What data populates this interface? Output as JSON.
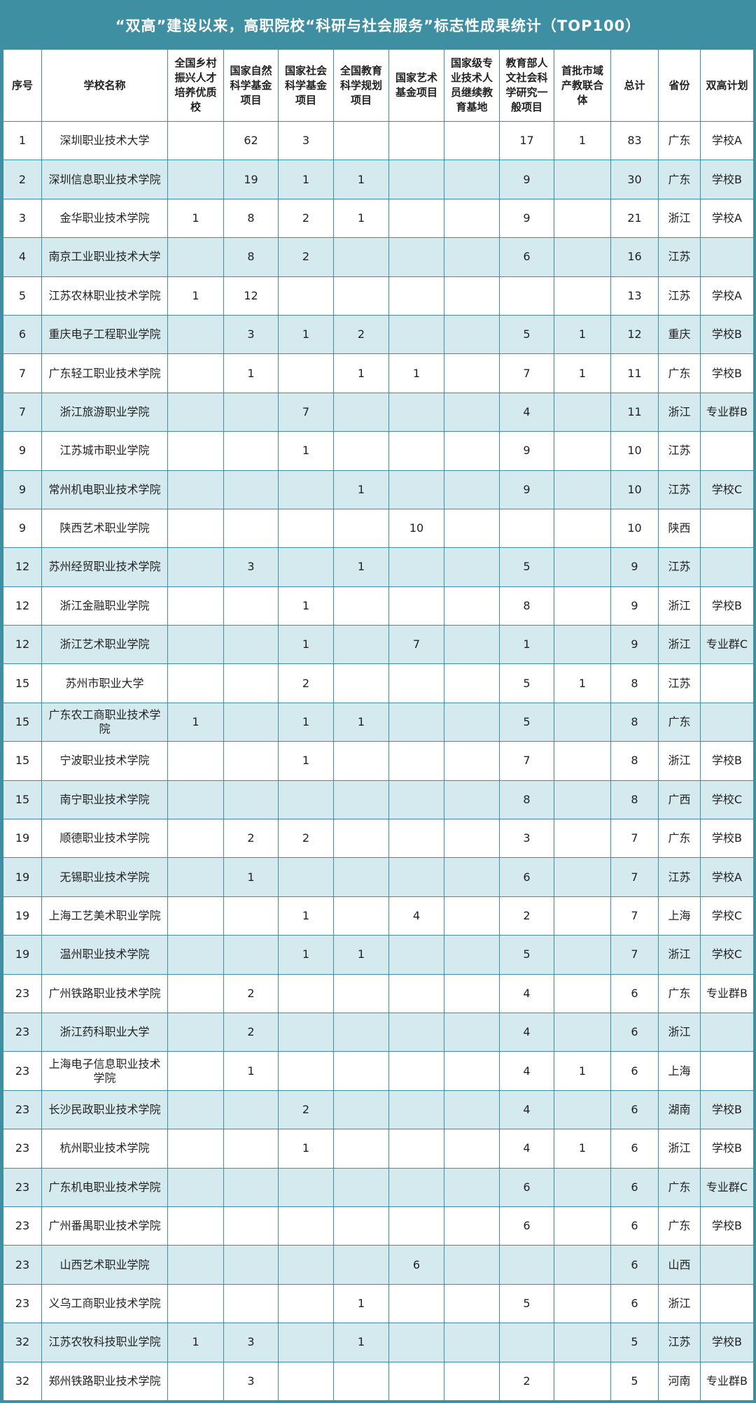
{
  "title": "“双高”建设以来，高职院校“科研与社会服务”标志性成果统计（TOP100）",
  "table": {
    "header": [
      "序号",
      "学校名称",
      "全国乡村振兴人才培养优质校",
      "国家自然科学基金项目",
      "国家社会科学基金项目",
      "全国教育科学规划项目",
      "国家艺术基金项目",
      "国家级专业技术人员继续教育基地",
      "教育部人文社会科学研究一般项目",
      "首批市域产教联合体",
      "总计",
      "省份",
      "双高计划"
    ],
    "rows": [
      [
        1,
        "深圳职业技术大学",
        null,
        62,
        3,
        null,
        null,
        null,
        17,
        1,
        83,
        "广东",
        "学校A"
      ],
      [
        2,
        "深圳信息职业技术学院",
        null,
        19,
        1,
        1,
        null,
        null,
        9,
        null,
        30,
        "广东",
        "学校B"
      ],
      [
        3,
        "金华职业技术学院",
        1,
        8,
        2,
        1,
        null,
        null,
        9,
        null,
        21,
        "浙江",
        "学校A"
      ],
      [
        4,
        "南京工业职业技术大学",
        null,
        8,
        2,
        null,
        null,
        null,
        6,
        null,
        16,
        "江苏",
        null
      ],
      [
        5,
        "江苏农林职业技术学院",
        1,
        12,
        null,
        null,
        null,
        null,
        null,
        null,
        13,
        "江苏",
        "学校A"
      ],
      [
        6,
        "重庆电子工程职业学院",
        null,
        3,
        1,
        2,
        null,
        null,
        5,
        1,
        12,
        "重庆",
        "学校B"
      ],
      [
        7,
        "广东轻工职业技术学院",
        null,
        1,
        null,
        1,
        1,
        null,
        7,
        1,
        11,
        "广东",
        "学校B"
      ],
      [
        7,
        "浙江旅游职业学院",
        null,
        null,
        7,
        null,
        null,
        null,
        4,
        null,
        11,
        "浙江",
        "专业群B"
      ],
      [
        9,
        "江苏城市职业学院",
        null,
        null,
        1,
        null,
        null,
        null,
        9,
        null,
        10,
        "江苏",
        null
      ],
      [
        9,
        "常州机电职业技术学院",
        null,
        null,
        null,
        1,
        null,
        null,
        9,
        null,
        10,
        "江苏",
        "学校C"
      ],
      [
        9,
        "陕西艺术职业学院",
        null,
        null,
        null,
        null,
        10,
        null,
        null,
        null,
        10,
        "陕西",
        null
      ],
      [
        12,
        "苏州经贸职业技术学院",
        null,
        3,
        null,
        1,
        null,
        null,
        5,
        null,
        9,
        "江苏",
        null
      ],
      [
        12,
        "浙江金融职业学院",
        null,
        null,
        1,
        null,
        null,
        null,
        8,
        null,
        9,
        "浙江",
        "学校B"
      ],
      [
        12,
        "浙江艺术职业学院",
        null,
        null,
        1,
        null,
        7,
        null,
        1,
        null,
        9,
        "浙江",
        "专业群C"
      ],
      [
        15,
        "苏州市职业大学",
        null,
        null,
        2,
        null,
        null,
        null,
        5,
        1,
        8,
        "江苏",
        null
      ],
      [
        15,
        "广东农工商职业技术学院",
        1,
        null,
        1,
        1,
        null,
        null,
        5,
        null,
        8,
        "广东",
        null
      ],
      [
        15,
        "宁波职业技术学院",
        null,
        null,
        1,
        null,
        null,
        null,
        7,
        null,
        8,
        "浙江",
        "学校B"
      ],
      [
        15,
        "南宁职业技术学院",
        null,
        null,
        null,
        null,
        null,
        null,
        8,
        null,
        8,
        "广西",
        "学校C"
      ],
      [
        19,
        "顺德职业技术学院",
        null,
        2,
        2,
        null,
        null,
        null,
        3,
        null,
        7,
        "广东",
        "学校B"
      ],
      [
        19,
        "无锡职业技术学院",
        null,
        1,
        null,
        null,
        null,
        null,
        6,
        null,
        7,
        "江苏",
        "学校A"
      ],
      [
        19,
        "上海工艺美术职业学院",
        null,
        null,
        1,
        null,
        4,
        null,
        2,
        null,
        7,
        "上海",
        "学校C"
      ],
      [
        19,
        "温州职业技术学院",
        null,
        null,
        1,
        1,
        null,
        null,
        5,
        null,
        7,
        "浙江",
        "学校C"
      ],
      [
        23,
        "广州铁路职业技术学院",
        null,
        2,
        null,
        null,
        null,
        null,
        4,
        null,
        6,
        "广东",
        "专业群B"
      ],
      [
        23,
        "浙江药科职业大学",
        null,
        2,
        null,
        null,
        null,
        null,
        4,
        null,
        6,
        "浙江",
        null
      ],
      [
        23,
        "上海电子信息职业技术学院",
        null,
        1,
        null,
        null,
        null,
        null,
        4,
        1,
        6,
        "上海",
        null
      ],
      [
        23,
        "长沙民政职业技术学院",
        null,
        null,
        2,
        null,
        null,
        null,
        4,
        null,
        6,
        "湖南",
        "学校B"
      ],
      [
        23,
        "杭州职业技术学院",
        null,
        null,
        1,
        null,
        null,
        null,
        4,
        1,
        6,
        "浙江",
        "学校B"
      ],
      [
        23,
        "广东机电职业技术学院",
        null,
        null,
        null,
        null,
        null,
        null,
        6,
        null,
        6,
        "广东",
        "专业群C"
      ],
      [
        23,
        "广州番禺职业技术学院",
        null,
        null,
        null,
        null,
        null,
        null,
        6,
        null,
        6,
        "广东",
        "学校B"
      ],
      [
        23,
        "山西艺术职业学院",
        null,
        null,
        null,
        null,
        6,
        null,
        null,
        null,
        6,
        "山西",
        null
      ],
      [
        23,
        "义乌工商职业技术学院",
        null,
        null,
        null,
        1,
        null,
        null,
        5,
        null,
        6,
        "浙江",
        null
      ],
      [
        32,
        "江苏农牧科技职业学院",
        1,
        3,
        null,
        1,
        null,
        null,
        null,
        null,
        5,
        "江苏",
        "学校B"
      ],
      [
        32,
        "郑州铁路职业技术学院",
        null,
        3,
        null,
        null,
        null,
        null,
        2,
        null,
        5,
        "河南",
        "专业群B"
      ]
    ]
  }
}
